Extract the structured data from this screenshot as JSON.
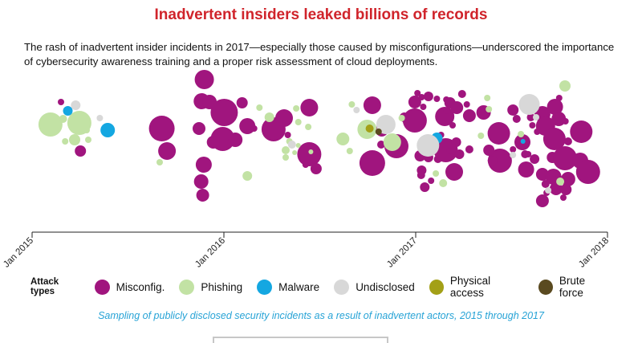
{
  "title": "Inadvertent insiders leaked billions of records",
  "subtitle": "The rash of inadvertent insider incidents in 2017—especially those caused by misconfigurations—underscored the importance of cybersecurity awareness training and a proper risk assessment of cloud deployments.",
  "legend": {
    "title": "Attack types",
    "items": [
      {
        "label": "Misconfig.",
        "color": "#a0157e"
      },
      {
        "label": "Phishing",
        "color": "#c2e2a4"
      },
      {
        "label": "Malware",
        "color": "#14a7e1"
      },
      {
        "label": "Undisclosed",
        "color": "#d8d8d8"
      },
      {
        "label": "Physical access",
        "color": "#a3a017"
      },
      {
        "label": "Brute force",
        "color": "#5a4a20"
      }
    ]
  },
  "caption": "Sampling of publicly disclosed security incidents as a result of inadvertent actors, 2015 through 2017",
  "chart_data": {
    "type": "scatter",
    "title": "Inadvertent insiders leaked billions of records",
    "x_axis": {
      "type": "date",
      "range": [
        "2015-01-01",
        "2018-01-01"
      ],
      "tick_labels": [
        "Jan 2015",
        "Jan 2016",
        "Jan 2017",
        "Jan 2018"
      ]
    },
    "y_axis": "none (beeswarm layout)",
    "colors": {
      "Misconfig.": "#a0157e",
      "Phishing": "#c2e2a4",
      "Malware": "#14a7e1",
      "Undisclosed": "#d8d8d8",
      "Physical access": "#a3a017",
      "Brute force": "#5a4a20"
    },
    "series": [
      {
        "name": "Misconfig.",
        "points": [
          [
            "2015-02-22",
            155,
            3
          ],
          [
            "2015-02-25",
            127,
            4
          ],
          [
            "2015-04-10",
            156,
            4
          ],
          [
            "2015-04-03",
            188,
            7
          ],
          [
            "2015-09-05",
            160,
            16
          ],
          [
            "2015-09-15",
            188,
            11
          ],
          [
            "2015-11-25",
            99,
            12
          ],
          [
            "2015-11-20",
            126,
            10
          ],
          [
            "2015-12-05",
            127,
            9
          ],
          [
            "2016-01-02",
            140,
            17
          ],
          [
            "2015-12-30",
            173,
            15
          ],
          [
            "2015-11-15",
            160,
            8
          ],
          [
            "2015-12-12",
            177,
            8
          ],
          [
            "2015-11-24",
            205,
            10
          ],
          [
            "2015-11-19",
            226,
            9
          ],
          [
            "2015-11-22",
            243,
            8
          ],
          [
            "2016-01-23",
            174,
            9
          ],
          [
            "2016-02-05",
            128,
            7
          ],
          [
            "2016-02-15",
            157,
            10
          ],
          [
            "2016-02-28",
            160,
            4
          ],
          [
            "2016-04-05",
            161,
            15
          ],
          [
            "2016-04-25",
            147,
            11
          ],
          [
            "2016-05-02",
            168,
            4
          ],
          [
            "2016-06-12",
            134,
            11
          ],
          [
            "2016-06-12",
            192,
            15
          ],
          [
            "2016-06-05",
            205,
            4
          ],
          [
            "2016-06-25",
            210,
            7
          ],
          [
            "2016-10-10",
            131,
            11
          ],
          [
            "2016-10-28",
            162,
            8
          ],
          [
            "2016-11-25",
            182,
            15
          ],
          [
            "2016-10-27",
            180,
            5
          ],
          [
            "2016-10-10",
            203,
            16
          ],
          [
            "2016-12-30",
            150,
            15
          ],
          [
            "2016-12-30",
            127,
            8
          ],
          [
            "2016-12-10",
            146,
            6
          ],
          [
            "2017-01-04",
            116,
            4
          ],
          [
            "2017-01-12",
            121,
            4
          ],
          [
            "2017-01-25",
            120,
            6
          ],
          [
            "2017-01-15",
            133,
            4
          ],
          [
            "2017-02-10",
            123,
            4
          ],
          [
            "2017-02-28",
            124,
            4
          ],
          [
            "2017-01-09",
            194,
            7
          ],
          [
            "2017-01-25",
            196,
            6
          ],
          [
            "2017-02-12",
            198,
            5
          ],
          [
            "2017-01-12",
            212,
            6
          ],
          [
            "2017-01-11",
            218,
            5
          ],
          [
            "2017-01-18",
            233,
            6
          ],
          [
            "2017-01-30",
            225,
            4
          ],
          [
            "2017-02-25",
            145,
            12
          ],
          [
            "2017-03-07",
            128,
            7
          ],
          [
            "2017-03-12",
            156,
            4
          ],
          [
            "2017-02-18",
            168,
            4
          ],
          [
            "2017-02-27",
            187,
            15
          ],
          [
            "2017-03-07",
            188,
            4
          ],
          [
            "2017-03-19",
            177,
            6
          ],
          [
            "2017-03-20",
            134,
            8
          ],
          [
            "2017-03-15",
            214,
            11
          ],
          [
            "2017-02-28",
            138,
            4
          ],
          [
            "2017-03-30",
            117,
            5
          ],
          [
            "2017-04-08",
            130,
            4
          ],
          [
            "2017-04-13",
            144,
            8
          ],
          [
            "2017-03-25",
            192,
            6
          ],
          [
            "2017-04-13",
            186,
            5
          ],
          [
            "2017-05-10",
            140,
            9
          ],
          [
            "2017-06-08",
            166,
            14
          ],
          [
            "2017-06-10",
            200,
            15
          ],
          [
            "2017-05-20",
            187,
            7
          ],
          [
            "2017-05-27",
            200,
            6
          ],
          [
            "2017-07-05",
            137,
            7
          ],
          [
            "2017-07-12",
            148,
            5
          ],
          [
            "2017-07-23",
            177,
            10
          ],
          [
            "2017-07-05",
            186,
            4
          ],
          [
            "2017-07-28",
            192,
            5
          ],
          [
            "2017-08-15",
            131,
            4
          ],
          [
            "2017-08-08",
            146,
            5
          ],
          [
            "2017-07-30",
            211,
            10
          ],
          [
            "2017-08-03",
            192,
            4
          ],
          [
            "2017-08-15",
            198,
            6
          ],
          [
            "2017-08-30",
            217,
            8
          ],
          [
            "2017-08-30",
            142,
            10
          ],
          [
            "2017-08-11",
            156,
            4
          ],
          [
            "2017-08-20",
            164,
            4
          ],
          [
            "2017-09-05",
            157,
            12
          ],
          [
            "2017-09-23",
            133,
            10
          ],
          [
            "2017-09-15",
            166,
            4
          ],
          [
            "2017-09-18",
            196,
            7
          ],
          [
            "2017-09-30",
            148,
            9
          ],
          [
            "2017-09-22",
            173,
            14
          ],
          [
            "2017-09-20",
            220,
            10
          ],
          [
            "2017-10-13",
            151,
            4
          ],
          [
            "2017-10-18",
            176,
            5
          ],
          [
            "2017-10-12",
            197,
            15
          ],
          [
            "2017-10-18",
            223,
            9
          ],
          [
            "2017-11-12",
            164,
            14
          ],
          [
            "2017-11-10",
            200,
            10
          ],
          [
            "2017-11-25",
            214,
            15
          ],
          [
            "2017-09-05",
            229,
            5
          ],
          [
            "2017-09-07",
            240,
            4
          ],
          [
            "2017-10-09",
            246,
            4
          ],
          [
            "2017-09-25",
            235,
            8
          ],
          [
            "2017-08-30",
            250,
            8
          ],
          [
            "2017-10-14",
            236,
            7
          ],
          [
            "2017-10-01",
            122,
            4
          ]
        ]
      },
      {
        "name": "Phishing",
        "points": [
          [
            "2015-02-05",
            155,
            15
          ],
          [
            "2015-03-01",
            148,
            5
          ],
          [
            "2015-03-05",
            176,
            4
          ],
          [
            "2015-04-01",
            153,
            15
          ],
          [
            "2015-03-23",
            174,
            7
          ],
          [
            "2015-04-18",
            174,
            4
          ],
          [
            "2015-04-15",
            162,
            4
          ],
          [
            "2015-09-01",
            202,
            4
          ],
          [
            "2016-02-15",
            219,
            6
          ],
          [
            "2016-03-09",
            134,
            4
          ],
          [
            "2016-03-28",
            146,
            6
          ],
          [
            "2016-04-28",
            187,
            5
          ],
          [
            "2016-04-28",
            196,
            4
          ],
          [
            "2016-05-05",
            176,
            4
          ],
          [
            "2016-05-15",
            190,
            3
          ],
          [
            "2016-05-18",
            135,
            4
          ],
          [
            "2016-05-22",
            152,
            4
          ],
          [
            "2016-06-15",
            189,
            3
          ],
          [
            "2016-05-22",
            181,
            3
          ],
          [
            "2016-06-10",
            158,
            4
          ],
          [
            "2016-08-15",
            173,
            8
          ],
          [
            "2016-08-28",
            188,
            4
          ],
          [
            "2016-09-30",
            161,
            12
          ],
          [
            "2016-09-01",
            130,
            4
          ],
          [
            "2016-11-17",
            177,
            11
          ],
          [
            "2017-02-22",
            228,
            5
          ],
          [
            "2017-05-05",
            169,
            4
          ],
          [
            "2017-05-17",
            122,
            4
          ],
          [
            "2017-05-20",
            136,
            4
          ],
          [
            "2017-07-20",
            167,
            4
          ],
          [
            "2017-10-12",
            107,
            7
          ],
          [
            "2017-10-03",
            226,
            5
          ],
          [
            "2017-02-08",
            216,
            4
          ],
          [
            "2016-12-05",
            147,
            4
          ]
        ]
      },
      {
        "name": "Malware",
        "points": [
          [
            "2015-03-10",
            138,
            6
          ],
          [
            "2015-05-25",
            162,
            9
          ],
          [
            "2017-02-10",
            172,
            7
          ],
          [
            "2017-07-24",
            176,
            3
          ]
        ]
      },
      {
        "name": "Undisclosed",
        "points": [
          [
            "2015-03-25",
            131,
            6
          ],
          [
            "2015-05-10",
            147,
            4
          ],
          [
            "2016-09-10",
            137,
            4
          ],
          [
            "2016-05-10",
            180,
            5
          ],
          [
            "2016-11-05",
            155,
            12
          ],
          [
            "2017-01-24",
            181,
            14
          ],
          [
            "2017-08-05",
            130,
            13
          ],
          [
            "2017-08-18",
            146,
            4
          ],
          [
            "2017-07-05",
            193,
            4
          ],
          [
            "2017-09-10",
            237,
            4
          ]
        ]
      },
      {
        "name": "Physical access",
        "points": [
          [
            "2016-10-05",
            160,
            5
          ]
        ]
      },
      {
        "name": "Brute force",
        "points": [
          [
            "2016-10-22",
            164,
            4
          ]
        ]
      }
    ],
    "point_format": [
      "date",
      "vertical position (layout)",
      "bubble size (relative records)"
    ]
  }
}
